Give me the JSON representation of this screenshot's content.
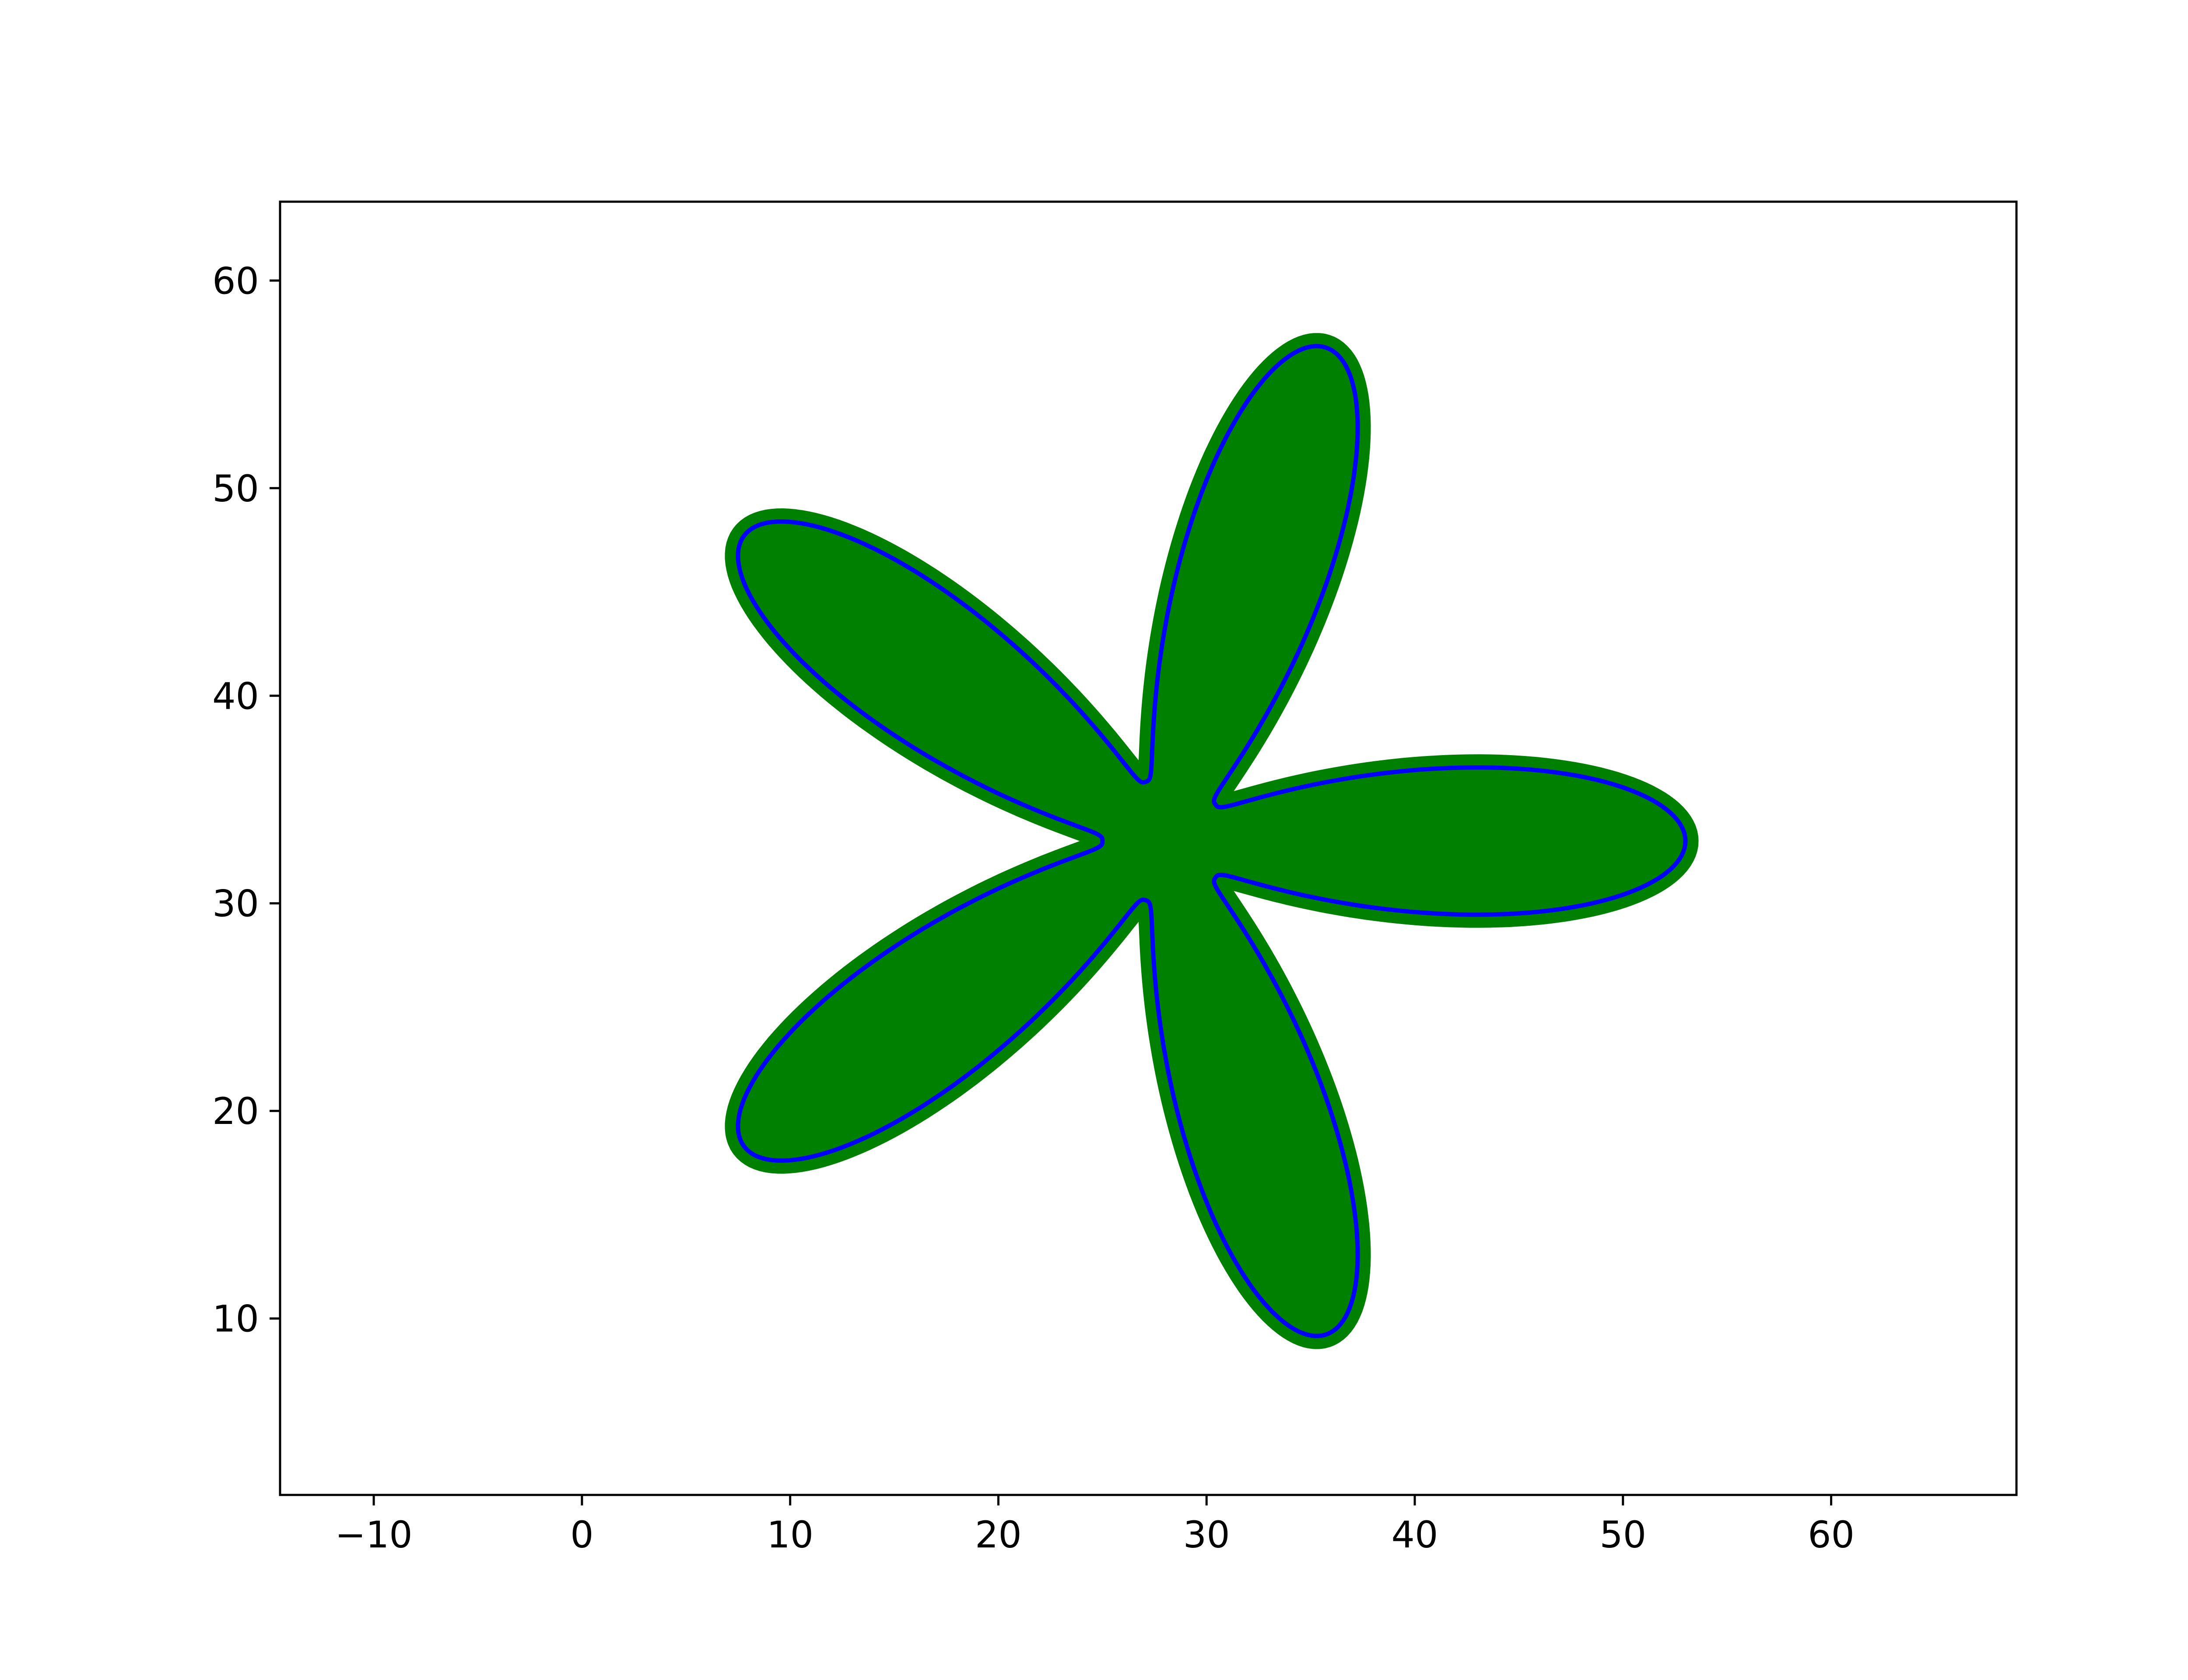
{
  "chart_data": {
    "type": "scatter",
    "title": "",
    "xlabel": "",
    "ylabel": "",
    "xlim": [
      -14.5,
      68.9
    ],
    "ylim": [
      1.5,
      63.8
    ],
    "xticks": [
      -10,
      0,
      10,
      20,
      30,
      40,
      50,
      60
    ],
    "xtick_labels": [
      "−10",
      "0",
      "10",
      "20",
      "30",
      "40",
      "50",
      "60"
    ],
    "yticks": [
      10,
      20,
      30,
      40,
      50,
      60
    ],
    "ytick_labels": [
      "10",
      "20",
      "30",
      "40",
      "50",
      "60"
    ],
    "grid": false,
    "legend": "none",
    "series": [
      {
        "kind": "flower-curve",
        "center": [
          28,
          33
        ],
        "petals": 5,
        "radius_min": 3,
        "radius_max": 25,
        "petal_phase_deg": 0,
        "fill_color": "#008000",
        "outline_color": "#0000ff"
      }
    ],
    "colors": {
      "fill": "#008000",
      "outline": "#0000ff",
      "axes": "#000000",
      "background": "#ffffff"
    }
  }
}
